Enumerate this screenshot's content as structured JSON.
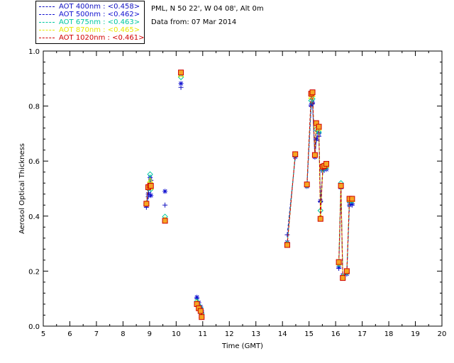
{
  "header": {
    "site": "PML, N 50 22', W 04 08', Alt 0m",
    "date": "Data from: 07 Mar 2014"
  },
  "chart_data": {
    "type": "scatter",
    "xlabel": "Time (GMT)",
    "ylabel": "Aerosol Optical Thickness",
    "xlim": [
      5,
      20
    ],
    "ylim": [
      0.0,
      1.0
    ],
    "xticks": [
      5,
      6,
      7,
      8,
      9,
      10,
      11,
      12,
      13,
      14,
      15,
      16,
      17,
      18,
      19,
      20
    ],
    "yticks": [
      0.0,
      0.2,
      0.4,
      0.6,
      0.8,
      1.0
    ],
    "ytick_labels": [
      "0.0",
      "0.2",
      "0.4",
      "0.6",
      "0.8",
      "1.0"
    ],
    "grid": false,
    "legend_position": "top-left, outside plot",
    "x": [
      8.88,
      8.95,
      9.02,
      9.05,
      9.58,
      10.18,
      10.78,
      10.85,
      10.92,
      10.96,
      14.18,
      14.48,
      14.92,
      15.08,
      15.13,
      15.22,
      15.27,
      15.37,
      15.43,
      15.52,
      15.58,
      15.65,
      16.12,
      16.2,
      16.27,
      16.42,
      16.52,
      16.62
    ],
    "series": [
      {
        "name": "AOT  400nm : <0.458>",
        "color": "#1010c0",
        "marker": "plus",
        "values": [
          0.432,
          0.47,
          0.52,
          0.53,
          0.44,
          0.868,
          0.1,
          0.075,
          0.06,
          0.05,
          0.332,
          0.615,
          0.51,
          0.8,
          0.81,
          0.615,
          0.675,
          0.69,
          0.452,
          0.565,
          0.578,
          0.575,
          0.21,
          0.5,
          0.18,
          0.19,
          0.45,
          0.44
        ]
      },
      {
        "name": "AOT  500nm : <0.462>",
        "color": "#1010d0",
        "marker": "star",
        "values": [
          0.438,
          0.48,
          0.54,
          0.475,
          0.49,
          0.882,
          0.105,
          0.085,
          0.07,
          0.055,
          0.305,
          0.615,
          0.508,
          0.804,
          0.812,
          0.615,
          0.68,
          0.7,
          0.455,
          0.565,
          0.575,
          0.57,
          0.215,
          0.505,
          0.185,
          0.19,
          0.44,
          0.445
        ]
      },
      {
        "name": "AOT  675nm : <0.463>",
        "color": "#00c8a0",
        "marker": "diamond",
        "values": [
          0.445,
          0.5,
          0.552,
          0.498,
          0.398,
          0.905,
          0.09,
          0.075,
          0.065,
          0.045,
          0.3,
          0.625,
          0.512,
          0.82,
          0.826,
          0.622,
          0.715,
          0.705,
          0.42,
          0.57,
          0.58,
          0.578,
          0.225,
          0.52,
          0.18,
          0.195,
          0.455,
          0.455
        ]
      },
      {
        "name": "AOT  870nm : <0.465>",
        "color": "#e8e800",
        "marker": "triangle",
        "values": [
          0.448,
          0.505,
          0.53,
          0.505,
          0.388,
          0.915,
          0.085,
          0.07,
          0.06,
          0.04,
          0.296,
          0.625,
          0.515,
          0.835,
          0.842,
          0.625,
          0.73,
          0.72,
          0.398,
          0.578,
          0.585,
          0.585,
          0.23,
          0.512,
          0.178,
          0.198,
          0.46,
          0.46
        ]
      },
      {
        "name": "AOT 1020nm : <0.461>",
        "color": "#d00000",
        "marker": "square",
        "values": [
          0.445,
          0.505,
          0.51,
          0.51,
          0.383,
          0.922,
          0.08,
          0.065,
          0.055,
          0.033,
          0.295,
          0.625,
          0.515,
          0.845,
          0.85,
          0.622,
          0.738,
          0.725,
          0.39,
          0.58,
          0.583,
          0.59,
          0.233,
          0.51,
          0.175,
          0.2,
          0.463,
          0.463
        ]
      }
    ]
  }
}
